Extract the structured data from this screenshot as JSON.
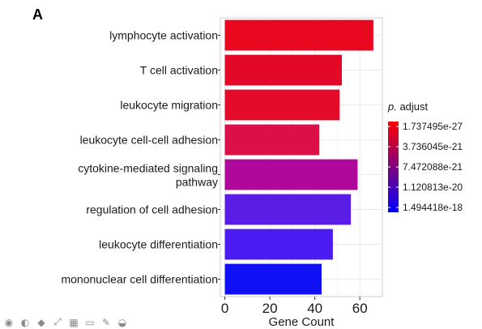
{
  "panel_letter": "A",
  "chart_data": {
    "type": "bar",
    "orientation": "horizontal",
    "categories": [
      "lymphocyte activation",
      "T cell activation",
      "leukocyte migration",
      "leukocyte cell-cell adhesion",
      "cytokine-mediated signaling pathway",
      "regulation of cell adhesion",
      "leukocyte differentiation",
      "mononuclear cell differentiation"
    ],
    "values": [
      66,
      52,
      51,
      42,
      59,
      56,
      48,
      43
    ],
    "bar_colors": [
      "#e8081f",
      "#e40828",
      "#e40a2a",
      "#dc1048",
      "#b0089a",
      "#5a1de6",
      "#4a1cf2",
      "#1010f5"
    ],
    "xlabel": "Gene Count",
    "ylabel": "",
    "xticks": [
      0,
      20,
      40,
      60
    ],
    "xlim": [
      -2,
      70
    ],
    "grid": true,
    "legend": {
      "title_italic": "p.",
      "title_rest": " adjust",
      "placement": "right",
      "labels": [
        "1.737495e-27",
        "3.736045e-21",
        "7.472088e-21",
        "1.120813e-20",
        "1.494418e-18"
      ],
      "gradient": [
        "#ff0000",
        "#0000ff"
      ]
    }
  },
  "toolbar": {
    "icons": [
      "record-icon",
      "pen-icon",
      "arrow-icon",
      "expand-icon",
      "grid-icon",
      "screen-icon",
      "pencil-icon",
      "more-icon"
    ],
    "glyphs": [
      "◉",
      "◐",
      "◆",
      "⤢",
      "▦",
      "▭",
      "✎",
      "◒"
    ]
  }
}
